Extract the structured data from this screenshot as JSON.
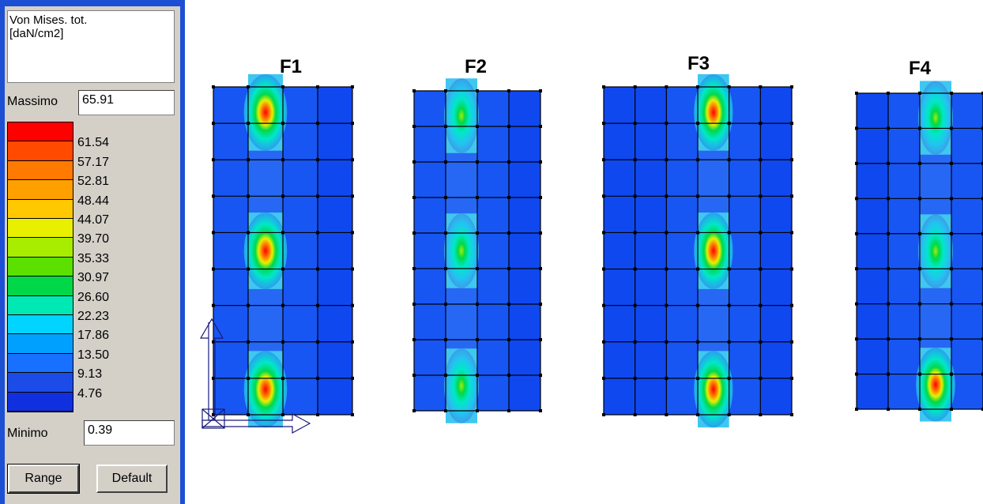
{
  "legend": {
    "title": "Von Mises. tot.\n[daN/cm2]",
    "max_label": "Massimo",
    "max_value": "65.91",
    "min_label": "Minimo",
    "min_value": "0.39",
    "scale_labels": [
      "61.54",
      "57.17",
      "52.81",
      "48.44",
      "44.07",
      "39.70",
      "35.33",
      "30.97",
      "26.60",
      "22.23",
      "17.86",
      "13.50",
      "9.13",
      "4.76"
    ],
    "scale_colors": [
      "#ff0000",
      "#ff4a00",
      "#ff7a00",
      "#ffa000",
      "#ffc800",
      "#e8f000",
      "#a8ec00",
      "#5ce000",
      "#00d84a",
      "#00e8b4",
      "#00d4ff",
      "#00a0ff",
      "#1870ff",
      "#1c4ce8",
      "#1030e0"
    ],
    "range_button": "Range",
    "default_button": "Default"
  },
  "panels": [
    {
      "label": "F1"
    },
    {
      "label": "F2"
    },
    {
      "label": "F3"
    },
    {
      "label": "F4"
    }
  ],
  "colors": {
    "panel_border": "#1c4fd4",
    "background_field": "#1048f0",
    "grid": "#000000",
    "axis": "#1a1a7a"
  }
}
